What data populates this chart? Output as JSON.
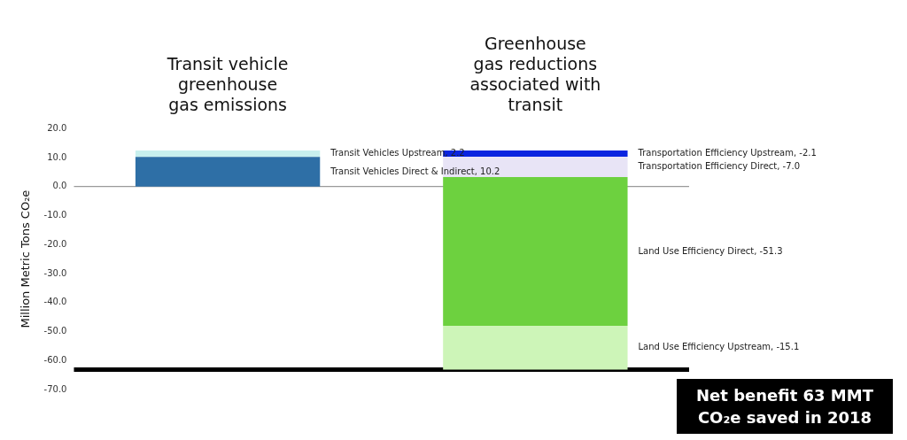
{
  "chart_data": {
    "type": "bar",
    "categories": [
      "Transit vehicle greenhouse gas emissions",
      "Greenhouse gas reductions associated with transit"
    ],
    "ylabel": "Million Metric Tons CO₂e",
    "ylim": [
      -70,
      20
    ],
    "yticks": [
      {
        "value": 20,
        "label": "20.0"
      },
      {
        "value": 10,
        "label": "10.0"
      },
      {
        "value": 0,
        "label": "0.0"
      },
      {
        "value": -10,
        "label": "-10.0"
      },
      {
        "value": -20,
        "label": "-20.0"
      },
      {
        "value": -30,
        "label": "-30.0"
      },
      {
        "value": -40,
        "label": "-40.0"
      },
      {
        "value": -50,
        "label": "-50.0"
      },
      {
        "value": -60,
        "label": "-60.0"
      },
      {
        "value": -70,
        "label": "-70.0"
      }
    ],
    "grid": false,
    "legend": false,
    "series": [
      {
        "name": "Transit Vehicles Direct & Indirect,",
        "color": "#2e6fa6",
        "values": [
          10.2,
          null
        ],
        "base": [
          0,
          null
        ],
        "value_labels": [
          "10.2",
          null
        ]
      },
      {
        "name": "Transit Vehicles Upstream,",
        "color": "#c8f0ee",
        "values": [
          2.2,
          null
        ],
        "base": [
          10.2,
          null
        ],
        "value_labels": [
          "2.2",
          null
        ]
      },
      {
        "name": "Transportation Efficiency Upstream,",
        "color": "#0a24e0",
        "values": [
          null,
          -2.1
        ],
        "base": [
          null,
          12.4
        ],
        "value_labels": [
          null,
          "-2.1"
        ]
      },
      {
        "name": "Transportation Efficiency Direct,",
        "color": "#e8e4f6",
        "values": [
          null,
          -7.0
        ],
        "base": [
          null,
          10.3
        ],
        "value_labels": [
          null,
          "-7.0"
        ]
      },
      {
        "name": "Land Use Efficiency Direct,",
        "color": "#6dd13f",
        "values": [
          null,
          -51.3
        ],
        "base": [
          null,
          3.3
        ],
        "value_labels": [
          null,
          "-51.3"
        ]
      },
      {
        "name": "Land Use Efficiency Upstream,",
        "color": "#cdf5b8",
        "values": [
          null,
          -15.1
        ],
        "base": [
          null,
          -48.0
        ],
        "value_labels": [
          null,
          "-15.1"
        ]
      }
    ],
    "ref_lines": [
      {
        "axis": "y",
        "value": 0,
        "color": "#808080"
      },
      {
        "axis": "y",
        "value": -63.1,
        "color": "#000000"
      }
    ],
    "annotations": [
      "Net benefit 63 MMT CO₂e saved in 2018"
    ]
  }
}
